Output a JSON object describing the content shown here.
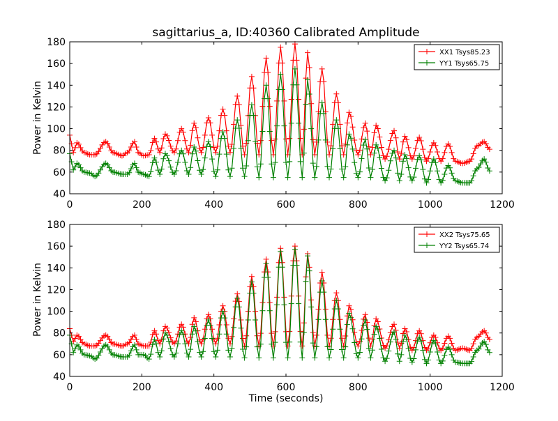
{
  "chart_data": [
    {
      "type": "line",
      "title": "sagittarius_a, ID:40360 Calibrated Amplitude",
      "xlabel": "",
      "ylabel": "Power in Kelvin",
      "xlim": [
        0,
        1200
      ],
      "ylim": [
        40,
        180
      ],
      "xticks": [
        "0",
        "200",
        "400",
        "600",
        "800",
        "1000",
        "1200"
      ],
      "yticks": [
        "40",
        "60",
        "80",
        "100",
        "120",
        "140",
        "160",
        "180"
      ],
      "legend_position": "top-right",
      "marker": "+",
      "grid": false,
      "series": [
        {
          "name": "XX1 Tsys85.23",
          "color": "#ff0000",
          "peaks": [
            [
              0,
              94
            ],
            [
              20,
              87
            ],
            [
              56,
              76
            ],
            [
              100,
              88
            ],
            [
              146,
              75
            ],
            [
              180,
              88
            ],
            [
              205,
              75
            ],
            [
              235,
              91
            ],
            [
              265,
              95
            ],
            [
              310,
              100
            ],
            [
              345,
              105
            ],
            [
              385,
              110
            ],
            [
              425,
              118
            ],
            [
              465,
              130
            ],
            [
              505,
              148
            ],
            [
              545,
              165
            ],
            [
              585,
              175
            ],
            [
              625,
              178
            ],
            [
              660,
              170
            ],
            [
              700,
              155
            ],
            [
              740,
              132
            ],
            [
              775,
              115
            ],
            [
              820,
              105
            ],
            [
              850,
              103
            ],
            [
              900,
              98
            ],
            [
              930,
              93
            ],
            [
              970,
              92
            ],
            [
              1010,
              87
            ],
            [
              1050,
              86
            ],
            [
              1090,
              68
            ],
            [
              1130,
              84
            ],
            [
              1150,
              88
            ],
            [
              1165,
              81
            ]
          ],
          "troughs": [
            [
              10,
              78
            ],
            [
              40,
              78
            ],
            [
              70,
              76
            ],
            [
              120,
              78
            ],
            [
              160,
              78
            ],
            [
              190,
              78
            ],
            [
              220,
              76
            ],
            [
              250,
              78
            ],
            [
              290,
              78
            ],
            [
              330,
              78
            ],
            [
              365,
              78
            ],
            [
              405,
              78
            ],
            [
              445,
              78
            ],
            [
              485,
              76
            ],
            [
              525,
              76
            ],
            [
              565,
              76
            ],
            [
              605,
              76
            ],
            [
              645,
              76
            ],
            [
              680,
              76
            ],
            [
              720,
              76
            ],
            [
              760,
              76
            ],
            [
              800,
              76
            ],
            [
              835,
              76
            ],
            [
              875,
              72
            ],
            [
              915,
              72
            ],
            [
              950,
              72
            ],
            [
              990,
              70
            ],
            [
              1030,
              70
            ],
            [
              1070,
              70
            ],
            [
              1110,
              70
            ]
          ]
        },
        {
          "name": "YY1 Tsys65.75",
          "color": "#008000",
          "peaks": [
            [
              0,
              77
            ],
            [
              20,
              68
            ],
            [
              56,
              59
            ],
            [
              100,
              68
            ],
            [
              146,
              58
            ],
            [
              180,
              68
            ],
            [
              205,
              58
            ],
            [
              235,
              73
            ],
            [
              265,
              77
            ],
            [
              310,
              80
            ],
            [
              345,
              83
            ],
            [
              385,
              88
            ],
            [
              425,
              97
            ],
            [
              465,
              108
            ],
            [
              505,
              122
            ],
            [
              545,
              140
            ],
            [
              585,
              150
            ],
            [
              625,
              155
            ],
            [
              660,
              145
            ],
            [
              700,
              124
            ],
            [
              740,
              108
            ],
            [
              775,
              95
            ],
            [
              820,
              90
            ],
            [
              850,
              85
            ],
            [
              900,
              80
            ],
            [
              930,
              76
            ],
            [
              970,
              75
            ],
            [
              1010,
              72
            ],
            [
              1050,
              66
            ],
            [
              1090,
              50
            ],
            [
              1130,
              63
            ],
            [
              1150,
              72
            ],
            [
              1165,
              61
            ]
          ],
          "troughs": [
            [
              10,
              62
            ],
            [
              40,
              60
            ],
            [
              70,
              56
            ],
            [
              120,
              60
            ],
            [
              160,
              58
            ],
            [
              190,
              60
            ],
            [
              220,
              56
            ],
            [
              250,
              58
            ],
            [
              290,
              58
            ],
            [
              330,
              58
            ],
            [
              365,
              58
            ],
            [
              405,
              56
            ],
            [
              445,
              56
            ],
            [
              485,
              56
            ],
            [
              525,
              55
            ],
            [
              565,
              55
            ],
            [
              605,
              55
            ],
            [
              645,
              55
            ],
            [
              680,
              55
            ],
            [
              720,
              55
            ],
            [
              760,
              55
            ],
            [
              800,
              55
            ],
            [
              835,
              55
            ],
            [
              875,
              52
            ],
            [
              915,
              52
            ],
            [
              950,
              52
            ],
            [
              990,
              50
            ],
            [
              1030,
              50
            ],
            [
              1070,
              52
            ],
            [
              1110,
              50
            ]
          ]
        }
      ]
    },
    {
      "type": "line",
      "title": "",
      "xlabel": "Time (seconds)",
      "ylabel": "Power in Kelvin",
      "xlim": [
        0,
        1200
      ],
      "ylim": [
        40,
        180
      ],
      "xticks": [
        "0",
        "200",
        "400",
        "600",
        "800",
        "1000",
        "1200"
      ],
      "yticks": [
        "40",
        "60",
        "80",
        "100",
        "120",
        "140",
        "160",
        "180"
      ],
      "legend_position": "top-right",
      "marker": "+",
      "grid": false,
      "series": [
        {
          "name": "XX2 Tsys75.65",
          "color": "#ff0000",
          "peaks": [
            [
              0,
              84
            ],
            [
              20,
              78
            ],
            [
              56,
              68
            ],
            [
              100,
              78
            ],
            [
              146,
              68
            ],
            [
              180,
              78
            ],
            [
              205,
              68
            ],
            [
              235,
              82
            ],
            [
              265,
              86
            ],
            [
              310,
              88
            ],
            [
              345,
              94
            ],
            [
              385,
              97
            ],
            [
              425,
              105
            ],
            [
              465,
              116
            ],
            [
              505,
              132
            ],
            [
              545,
              148
            ],
            [
              585,
              158
            ],
            [
              625,
              160
            ],
            [
              660,
              153
            ],
            [
              700,
              136
            ],
            [
              740,
              117
            ],
            [
              775,
              105
            ],
            [
              820,
              97
            ],
            [
              850,
              93
            ],
            [
              900,
              88
            ],
            [
              930,
              84
            ],
            [
              970,
              82
            ],
            [
              1010,
              78
            ],
            [
              1050,
              77
            ],
            [
              1090,
              66
            ],
            [
              1130,
              76
            ],
            [
              1150,
              82
            ],
            [
              1165,
              74
            ]
          ],
          "troughs": [
            [
              10,
              72
            ],
            [
              40,
              70
            ],
            [
              70,
              68
            ],
            [
              120,
              70
            ],
            [
              160,
              70
            ],
            [
              190,
              70
            ],
            [
              220,
              68
            ],
            [
              250,
              70
            ],
            [
              290,
              70
            ],
            [
              330,
              70
            ],
            [
              365,
              70
            ],
            [
              405,
              70
            ],
            [
              445,
              70
            ],
            [
              485,
              68
            ],
            [
              525,
              68
            ],
            [
              565,
              68
            ],
            [
              605,
              68
            ],
            [
              645,
              68
            ],
            [
              680,
              68
            ],
            [
              720,
              68
            ],
            [
              760,
              68
            ],
            [
              800,
              68
            ],
            [
              835,
              68
            ],
            [
              875,
              66
            ],
            [
              915,
              66
            ],
            [
              950,
              64
            ],
            [
              990,
              64
            ],
            [
              1030,
              64
            ],
            [
              1070,
              64
            ],
            [
              1110,
              64
            ]
          ]
        },
        {
          "name": "YY2 Tsys65.74",
          "color": "#008000",
          "peaks": [
            [
              0,
              78
            ],
            [
              20,
              69
            ],
            [
              56,
              59
            ],
            [
              100,
              69
            ],
            [
              146,
              58
            ],
            [
              180,
              69
            ],
            [
              205,
              60
            ],
            [
              235,
              74
            ],
            [
              265,
              80
            ],
            [
              310,
              82
            ],
            [
              345,
              86
            ],
            [
              385,
              92
            ],
            [
              425,
              100
            ],
            [
              465,
              112
            ],
            [
              505,
              127
            ],
            [
              545,
              144
            ],
            [
              585,
              155
            ],
            [
              625,
              157
            ],
            [
              660,
              151
            ],
            [
              700,
              128
            ],
            [
              740,
              110
            ],
            [
              775,
              98
            ],
            [
              820,
              92
            ],
            [
              850,
              86
            ],
            [
              900,
              81
            ],
            [
              930,
              78
            ],
            [
              970,
              76
            ],
            [
              1010,
              73
            ],
            [
              1050,
              67
            ],
            [
              1090,
              52
            ],
            [
              1130,
              64
            ],
            [
              1150,
              72
            ],
            [
              1165,
              62
            ]
          ],
          "troughs": [
            [
              10,
              62
            ],
            [
              40,
              60
            ],
            [
              70,
              56
            ],
            [
              120,
              60
            ],
            [
              160,
              58
            ],
            [
              190,
              60
            ],
            [
              220,
              56
            ],
            [
              250,
              58
            ],
            [
              290,
              58
            ],
            [
              330,
              58
            ],
            [
              365,
              58
            ],
            [
              405,
              58
            ],
            [
              445,
              58
            ],
            [
              485,
              57
            ],
            [
              525,
              57
            ],
            [
              565,
              57
            ],
            [
              605,
              57
            ],
            [
              645,
              57
            ],
            [
              680,
              57
            ],
            [
              720,
              57
            ],
            [
              760,
              57
            ],
            [
              800,
              57
            ],
            [
              835,
              57
            ],
            [
              875,
              54
            ],
            [
              915,
              54
            ],
            [
              950,
              53
            ],
            [
              990,
              52
            ],
            [
              1030,
              52
            ],
            [
              1070,
              53
            ],
            [
              1110,
              52
            ]
          ]
        }
      ]
    }
  ]
}
